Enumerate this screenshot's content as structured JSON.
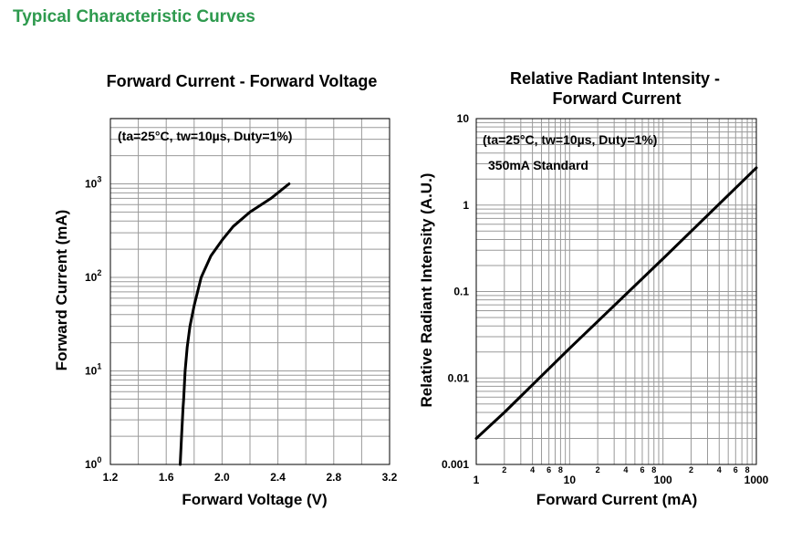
{
  "page": {
    "title": "Typical Characteristic Curves",
    "title_color": "#2e9a4e"
  },
  "chart_data": [
    {
      "type": "line",
      "title": "Forward Current - Forward Voltage",
      "xlabel": "Forward Voltage (V)",
      "ylabel": "Forward Current (mA)",
      "annotation": "(ta=25°C, tw=10µs, Duty=1%)",
      "xscale": "linear",
      "yscale": "log",
      "xlim": [
        1.2,
        3.2
      ],
      "ylim": [
        1,
        5000
      ],
      "xticks": [
        "1.2",
        "1.6",
        "2.0",
        "2.4",
        "2.8",
        "3.2"
      ],
      "yticks": [
        {
          "base": "10",
          "exp": "0"
        },
        {
          "base": "10",
          "exp": "1"
        },
        {
          "base": "10",
          "exp": "2"
        },
        {
          "base": "10",
          "exp": "3"
        }
      ],
      "grid": true,
      "series": [
        {
          "x": [
            1.7,
            1.71,
            1.72,
            1.725,
            1.735,
            1.75,
            1.77,
            1.8,
            1.85,
            1.92,
            2.0,
            2.08,
            2.2,
            2.35,
            2.48
          ],
          "y": [
            1,
            2,
            4,
            5,
            10,
            18,
            30,
            50,
            100,
            170,
            250,
            350,
            500,
            700,
            1000
          ]
        }
      ]
    },
    {
      "type": "line",
      "title": [
        "Relative Radiant Intensity -",
        "Forward Current"
      ],
      "xlabel": "Forward Current (mA)",
      "ylabel": "Relative Radiant Intensity (A.U.)",
      "annotation": "(ta=25°C, tw=10µs, Duty=1%)",
      "annotation2": "350mA Standard",
      "xscale": "log",
      "yscale": "log",
      "xlim": [
        1,
        1000
      ],
      "ylim": [
        0.001,
        10
      ],
      "xticks": [
        "1",
        "10",
        "100",
        "1000"
      ],
      "xminor_labels": [
        "2",
        "4",
        "6",
        "8"
      ],
      "yticks": [
        "0.001",
        "0.01",
        "0.1",
        "1",
        "10"
      ],
      "grid": true,
      "series": [
        {
          "x": [
            1,
            2,
            10,
            100,
            1000
          ],
          "y": [
            0.002,
            0.004,
            0.022,
            0.24,
            2.7
          ]
        }
      ]
    }
  ]
}
